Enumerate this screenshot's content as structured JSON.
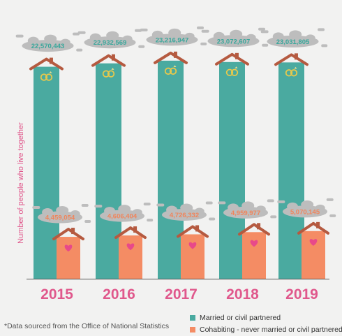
{
  "chart_data": {
    "type": "bar",
    "categories": [
      "2015",
      "2016",
      "2017",
      "2018",
      "2019"
    ],
    "series": [
      {
        "name": "Married or civil partnered",
        "values": [
          22570443,
          22932569,
          23216947,
          23072607,
          23031805
        ],
        "labels": [
          "22,570,443",
          "22,932,569",
          "23,216,947",
          "23,072,607",
          "23,031,805"
        ],
        "color": "#4aaaa0"
      },
      {
        "name": "Cohabiting - never married or civil partnered",
        "values": [
          4459054,
          4606404,
          4726332,
          4959977,
          5070145
        ],
        "labels": [
          "4,459,054",
          "4,606,404",
          "4,726,332",
          "4,959,977",
          "5,070,145"
        ],
        "color": "#f48c64"
      }
    ],
    "ylabel": "Number of people who live together",
    "xlabel": "",
    "title": "",
    "grid": false,
    "legend": "bottom-right",
    "icons": [
      "wedding-rings-icon",
      "heart-icon",
      "house-roof-icon",
      "smoke-cloud-icon"
    ]
  },
  "footnote": "*Data sourced from the Office of National Statistics",
  "colors": {
    "year_label": "#e0588c",
    "roof": "#b55a40",
    "cloud": "#bdbdbd",
    "married_text": "#3aa79b",
    "cohab_text": "#f0855c",
    "background": "#f2f2f1"
  }
}
